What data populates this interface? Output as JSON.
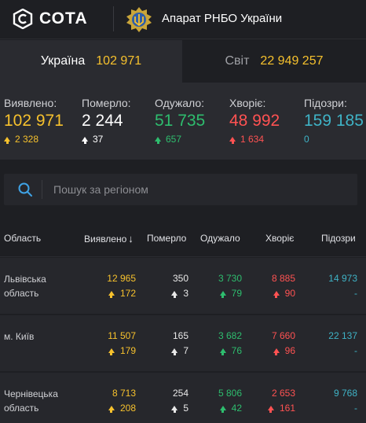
{
  "header": {
    "brand": "СОТА",
    "organization": "Апарат РНБО України"
  },
  "tabs": [
    {
      "label": "Україна",
      "value": "102 971"
    },
    {
      "label": "Світ",
      "value": "22 949 257"
    }
  ],
  "stats": [
    {
      "label": "Виявлено:",
      "value": "102 971",
      "delta": "2 328",
      "color": "#f6c12d"
    },
    {
      "label": "Померло:",
      "value": "2 244",
      "delta": "37",
      "color": "#ffffff"
    },
    {
      "label": "Одужало:",
      "value": "51 735",
      "delta": "657",
      "color": "#2ebd6e"
    },
    {
      "label": "Хворіє:",
      "value": "48 992",
      "delta": "1 634",
      "color": "#ff5252"
    },
    {
      "label": "Підозри:",
      "value": "159 185",
      "delta": "0",
      "color": "#3fb3c6"
    }
  ],
  "search": {
    "placeholder": "Пошук за регіоном",
    "value": ""
  },
  "table": {
    "columns": [
      "Область",
      "Виявлено",
      "Померло",
      "Одужало",
      "Хворіє",
      "Підозри"
    ],
    "rows": [
      {
        "region": "Львівська область",
        "confirmed": "12 965",
        "confirmed_delta": "172",
        "deaths": "350",
        "deaths_delta": "3",
        "recovered": "3 730",
        "recovered_delta": "79",
        "sick": "8 885",
        "sick_delta": "90",
        "suspected": "14 973",
        "suspected_delta": "-"
      },
      {
        "region": "м. Київ",
        "confirmed": "11 507",
        "confirmed_delta": "179",
        "deaths": "165",
        "deaths_delta": "7",
        "recovered": "3 682",
        "recovered_delta": "76",
        "sick": "7 660",
        "sick_delta": "96",
        "suspected": "22 137",
        "suspected_delta": "-"
      },
      {
        "region": "Чернівецька область",
        "confirmed": "8 713",
        "confirmed_delta": "208",
        "deaths": "254",
        "deaths_delta": "5",
        "recovered": "5 806",
        "recovered_delta": "42",
        "sick": "2 653",
        "sick_delta": "161",
        "suspected": "9 768",
        "suspected_delta": "-"
      }
    ]
  }
}
